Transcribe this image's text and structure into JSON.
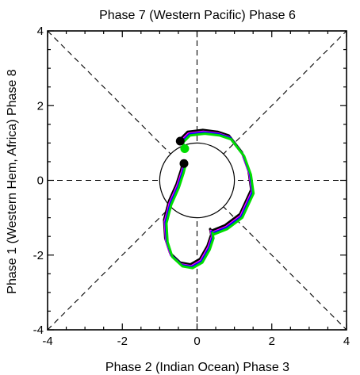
{
  "chart_data": {
    "type": "line",
    "title": "Phase 7 (Western Pacific) Phase 6",
    "xlabel": "Phase 2 (Indian Ocean) Phase 3",
    "ylabel": "Phase 1 (Western Hem, Africa) Phase 8",
    "xlim": [
      -4,
      4
    ],
    "ylim": [
      -4,
      4
    ],
    "x_ticks": [
      "-4",
      "-2",
      "0",
      "2",
      "4"
    ],
    "y_ticks": [
      "-4",
      "-2",
      "0",
      "2",
      "4"
    ],
    "unit_circle_radius": 1,
    "grid": "dashed diagonals and axes",
    "series": [
      {
        "color": "#000000",
        "x": [
          -0.38,
          -0.42,
          -0.55,
          -0.75,
          -0.88,
          -0.85,
          -0.72,
          -0.45,
          -0.18,
          0.08,
          0.28,
          0.38,
          0.35,
          0.38,
          0.75,
          1.15,
          1.45,
          1.38,
          1.2,
          0.85,
          0.55,
          0.15,
          -0.25,
          -0.45,
          -0.2
        ],
        "y": [
          0.5,
          0.3,
          -0.1,
          -0.55,
          -1.05,
          -1.55,
          -1.95,
          -2.2,
          -2.25,
          -2.1,
          -1.75,
          -1.45,
          -1.3,
          -1.35,
          -1.2,
          -0.9,
          -0.25,
          0.25,
          0.75,
          1.2,
          1.3,
          1.35,
          1.3,
          1.1,
          1.2
        ]
      },
      {
        "color": "#ff00ff",
        "x": [
          -0.35,
          -0.4,
          -0.53,
          -0.73,
          -0.86,
          -0.83,
          -0.7,
          -0.43,
          -0.16,
          0.1,
          0.3,
          0.4,
          0.37,
          0.4,
          0.77,
          1.17,
          1.47,
          1.4,
          1.22,
          0.87,
          0.57,
          0.17,
          -0.23,
          -0.43,
          -0.32
        ],
        "y": [
          0.45,
          0.25,
          -0.15,
          -0.6,
          -1.1,
          -1.6,
          -2.0,
          -2.25,
          -2.3,
          -2.15,
          -1.8,
          -1.5,
          -1.35,
          -1.4,
          -1.25,
          -0.95,
          -0.3,
          0.2,
          0.7,
          1.15,
          1.25,
          1.3,
          1.25,
          1.05,
          0.9
        ]
      },
      {
        "color": "#0000ff",
        "x": [
          -0.33,
          -0.38,
          -0.51,
          -0.71,
          -0.84,
          -0.81,
          -0.68,
          -0.41,
          -0.14,
          0.12,
          0.32,
          0.42,
          0.39,
          0.42,
          0.79,
          1.19,
          1.49,
          1.42,
          1.24,
          0.89,
          0.59,
          0.19,
          -0.21,
          -0.41,
          -0.3
        ],
        "y": [
          0.43,
          0.23,
          -0.17,
          -0.62,
          -1.12,
          -1.62,
          -2.02,
          -2.27,
          -2.32,
          -2.17,
          -1.82,
          -1.52,
          -1.37,
          -1.42,
          -1.27,
          -0.97,
          -0.32,
          0.18,
          0.68,
          1.13,
          1.23,
          1.28,
          1.23,
          1.03,
          0.88
        ]
      },
      {
        "color": "#00dd00",
        "x": [
          -0.31,
          -0.36,
          -0.49,
          -0.69,
          -0.82,
          -0.79,
          -0.66,
          -0.39,
          -0.12,
          0.14,
          0.34,
          0.44,
          0.41,
          0.44,
          0.81,
          1.21,
          1.51,
          1.44,
          1.26,
          0.91,
          0.61,
          0.21,
          -0.19,
          -0.39,
          -0.28
        ],
        "y": [
          0.4,
          0.2,
          -0.2,
          -0.65,
          -1.15,
          -1.65,
          -2.05,
          -2.3,
          -2.35,
          -2.2,
          -1.85,
          -1.55,
          -1.4,
          -1.45,
          -1.3,
          -1.0,
          -0.35,
          0.15,
          0.65,
          1.1,
          1.2,
          1.25,
          1.2,
          1.0,
          0.85
        ]
      }
    ],
    "end_markers": [
      {
        "color": "#000000",
        "x": -0.45,
        "y": 1.05
      },
      {
        "color": "#00dd00",
        "x": -0.33,
        "y": 0.85
      },
      {
        "color": "#000000",
        "x": -0.35,
        "y": 0.45
      }
    ]
  }
}
